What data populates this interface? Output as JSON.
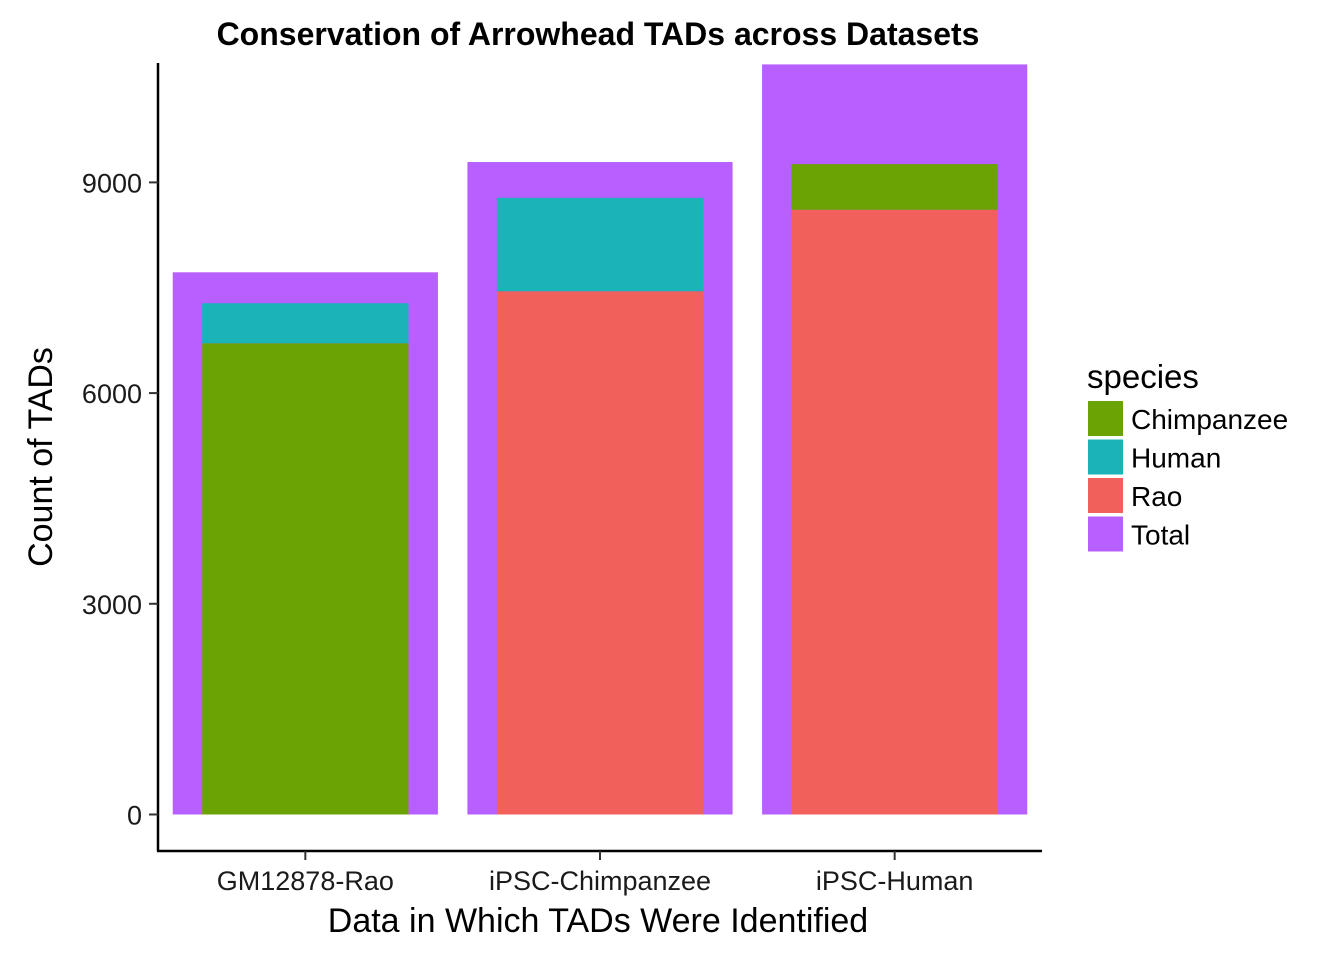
{
  "chart_data": {
    "type": "bar",
    "title": "Conservation of Arrowhead TADs across Datasets",
    "xlabel": "Data in Which TADs Were Identified",
    "ylabel": "Count of TADs",
    "categories": [
      "GM12878-Rao",
      "iPSC-Chimpanzee",
      "iPSC-Human"
    ],
    "ylim": [
      -520,
      10700
    ],
    "yticks": [
      0,
      3000,
      6000,
      9000
    ],
    "grid": false,
    "legend": {
      "title": "species",
      "position": "right",
      "entries": [
        "Chimpanzee",
        "Human",
        "Rao",
        "Total"
      ]
    },
    "colors": {
      "Chimpanzee": "#6BA304",
      "Human": "#1AB3B8",
      "Rao": "#F2605B",
      "Total": "#B760FF"
    },
    "totals": [
      7720,
      9290,
      10680
    ],
    "segments": [
      [
        {
          "name": "Chimpanzee",
          "value": 6710
        },
        {
          "name": "Human",
          "value": 570
        }
      ],
      [
        {
          "name": "Rao",
          "value": 7450
        },
        {
          "name": "Human",
          "value": 1330
        }
      ],
      [
        {
          "name": "Rao",
          "value": 8610
        },
        {
          "name": "Chimpanzee",
          "value": 650
        }
      ]
    ]
  }
}
